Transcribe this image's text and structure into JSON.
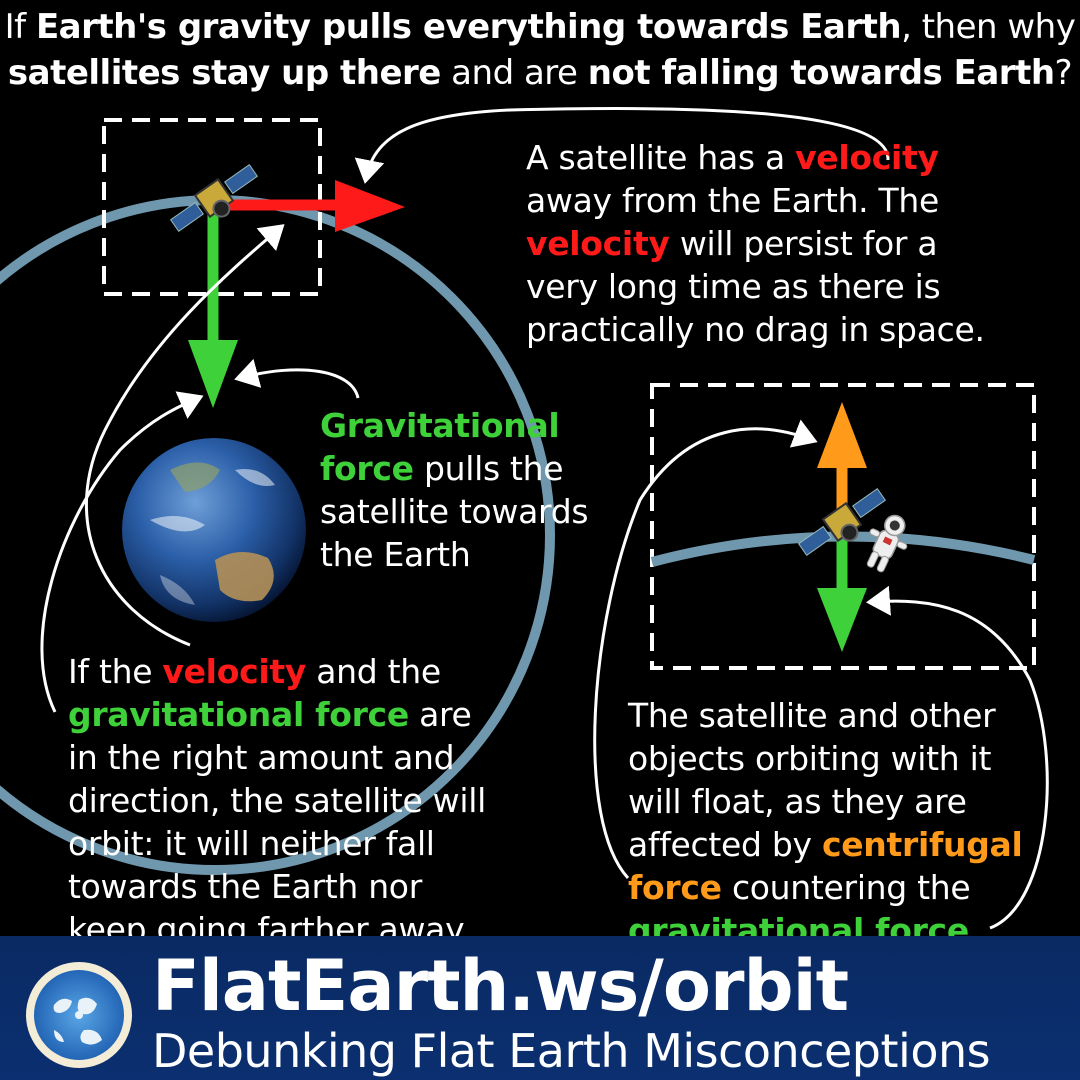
{
  "headline": {
    "line1": [
      {
        "text": "If ",
        "bold": false
      },
      {
        "text": "Earth's gravity pulls everything towards Earth",
        "bold": true
      },
      {
        "text": ", then why",
        "bold": false
      }
    ],
    "line2": [
      {
        "text": "satellites stay up there",
        "bold": true
      },
      {
        "text": " and are ",
        "bold": false
      },
      {
        "text": "not falling towards Earth",
        "bold": true
      },
      {
        "text": "?",
        "bold": false
      }
    ]
  },
  "velocity_text": {
    "l1a": "A satellite has a ",
    "l1b": "velocity",
    "l2": "away from the Earth. The",
    "l3a": "velocity",
    "l3b": " will persist for a",
    "l4": "very long time as there is",
    "l5": "practically no drag in space."
  },
  "gravity_text": {
    "l1": "Gravitational",
    "l2a": "force",
    "l2b": " pulls the",
    "l3": "satellite towards",
    "l4": "the Earth"
  },
  "orbit_text": {
    "l1a": "If the ",
    "l1b": "velocity",
    "l1c": " and the",
    "l2a": "gravitational force",
    "l2b": " are",
    "l3": "in the right amount and",
    "l4": "direction, the satellite will",
    "l5": "orbit: it will neither fall",
    "l6": "towards the Earth nor",
    "l7": "keep going farther away."
  },
  "float_text": {
    "l1": "The satellite and other",
    "l2": "objects orbiting with it",
    "l3": "will float, as they are",
    "l4a": "affected by ",
    "l4b": "centrifugal",
    "l5a": "force",
    "l5b": " countering the",
    "l6a": "gravitational force",
    "l6b": "."
  },
  "footer": {
    "title": "FlatEarth.ws/orbit",
    "subtitle": "Debunking Flat Earth Misconceptions"
  },
  "colors": {
    "velocity": "#ff1a1a",
    "gravity": "#3ed13a",
    "centrifugal": "#ff9a1a",
    "orbit": "#6f97ad",
    "footer_bg": "#0b2f70"
  },
  "icons": [
    "satellite-icon",
    "earth-globe-icon",
    "astronaut-icon",
    "site-logo-globe-icon"
  ]
}
